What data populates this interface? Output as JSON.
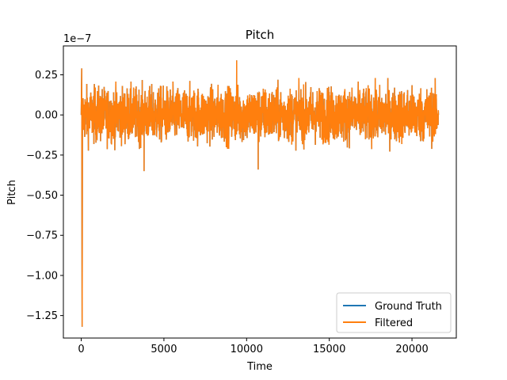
{
  "chart_data": {
    "type": "line",
    "title": "Pitch",
    "xlabel": "Time",
    "ylabel": "Pitch",
    "y_scale_label": "1e−7",
    "xlim": [
      -1080,
      22680
    ],
    "ylim": [
      -1.39e-07,
      4.3e-08
    ],
    "xticks": [
      0,
      5000,
      10000,
      15000,
      20000
    ],
    "xtick_labels": [
      "0",
      "5000",
      "10000",
      "15000",
      "20000"
    ],
    "yticks": [
      2.5e-08,
      0,
      -2.5e-08,
      -5e-08,
      -7.5e-08,
      -1e-07,
      -1.25e-07
    ],
    "ytick_labels": [
      "0.25",
      "0.00",
      "−0.25",
      "−0.50",
      "−0.75",
      "−1.00",
      "−1.25"
    ],
    "grid": false,
    "legend_position": "lower-right",
    "x_range": [
      0,
      21600
    ],
    "noise": {
      "typical_peak": 2e-08,
      "extreme_max": 3.4e-08,
      "extreme_min": -3.5e-08
    },
    "notable_points": [
      {
        "x": 0,
        "y": 0
      },
      {
        "x": 30,
        "y": 2.9e-08
      },
      {
        "x": 55,
        "y": -1.32e-07
      },
      {
        "x": 9400,
        "y": 3.4e-08
      },
      {
        "x": 3800,
        "y": -3.5e-08
      },
      {
        "x": 10700,
        "y": -3.4e-08
      },
      {
        "x": 21600,
        "y": 0
      }
    ],
    "series": [
      {
        "name": "Ground Truth",
        "color": "#1f77b4"
      },
      {
        "name": "Filtered",
        "color": "#ff7f0e"
      }
    ]
  }
}
